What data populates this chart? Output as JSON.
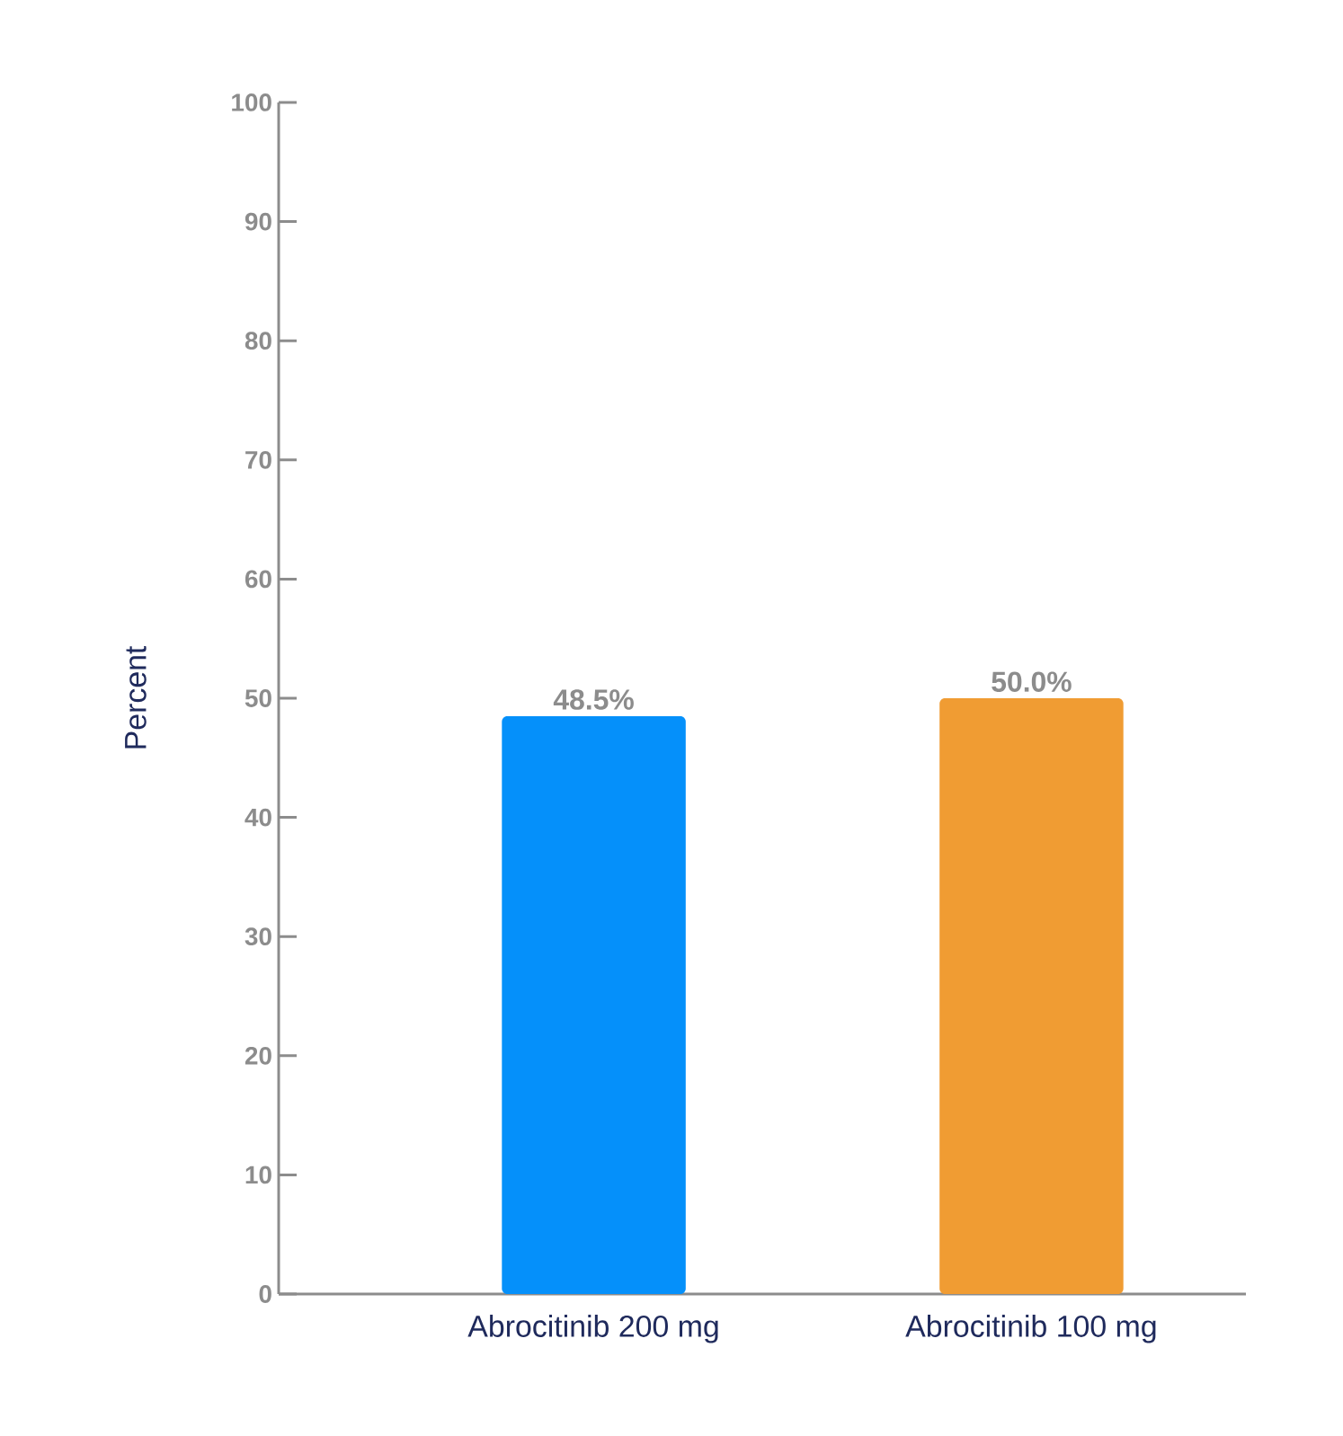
{
  "chart_data": {
    "type": "bar",
    "ylabel": "Percent",
    "categories": [
      "Abrocitinib 200 mg",
      "Abrocitinib 100 mg"
    ],
    "values": [
      48.5,
      50.0
    ],
    "colors": [
      "#0590fa",
      "#f09c33"
    ],
    "value_labels": [
      "48.5%",
      "50.0%"
    ],
    "ylim": [
      0,
      100
    ],
    "yticks": [
      0,
      10,
      20,
      30,
      40,
      50,
      60,
      70,
      80,
      90,
      100
    ],
    "grid": false
  }
}
